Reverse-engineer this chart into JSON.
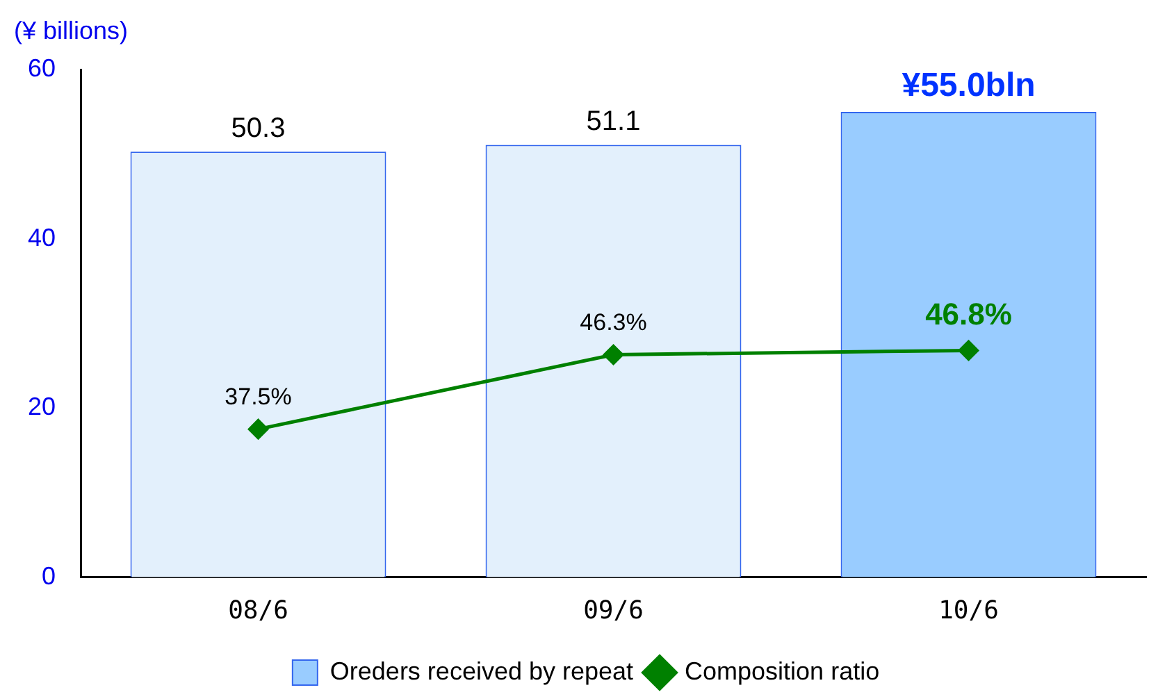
{
  "chart_data": {
    "type": "bar",
    "ylabel": "(¥ billions)",
    "categories": [
      "08/6",
      "09/6",
      "10/6"
    ],
    "series": [
      {
        "name": "Oreders received by repeat",
        "colors": [
          "#e3f0fc",
          "#e3f0fc",
          "#99ccff"
        ],
        "color": "#99ccff",
        "values": [
          50.3,
          51.1,
          55.0
        ],
        "value_labels": [
          "50.3",
          "51.1",
          "¥55.0bln"
        ]
      },
      {
        "name": "Composition ratio",
        "type": "line",
        "axis": "y2",
        "color": "#008000",
        "values": [
          37.5,
          46.3,
          46.8
        ],
        "value_labels": [
          "37.5%",
          "46.3%",
          "46.8%"
        ],
        "marker": "diamond"
      }
    ],
    "ylim": [
      0,
      60
    ],
    "yticks": [
      0,
      20,
      40,
      60
    ],
    "y2lim": [
      20,
      80
    ],
    "grid": false,
    "legend": "bottom"
  }
}
